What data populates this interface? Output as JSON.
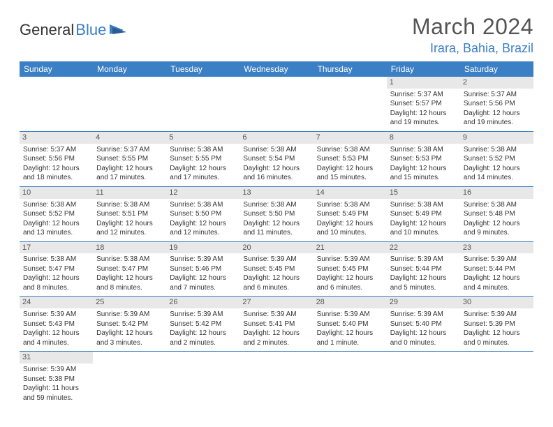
{
  "logo": {
    "text1": "General",
    "text2": "Blue"
  },
  "title": "March 2024",
  "location": "Irara, Bahia, Brazil",
  "dayHeaders": [
    "Sunday",
    "Monday",
    "Tuesday",
    "Wednesday",
    "Thursday",
    "Friday",
    "Saturday"
  ],
  "colors": {
    "header_bg": "#3b7fc4",
    "header_text": "#ffffff",
    "daynum_bg": "#e8e8e8",
    "border": "#3b7fc4",
    "location_text": "#3b7fc4",
    "title_text": "#555555"
  },
  "weeks": [
    [
      null,
      null,
      null,
      null,
      null,
      {
        "d": "1",
        "sr": "5:37 AM",
        "ss": "5:57 PM",
        "dl": "12 hours and 19 minutes."
      },
      {
        "d": "2",
        "sr": "5:37 AM",
        "ss": "5:56 PM",
        "dl": "12 hours and 19 minutes."
      }
    ],
    [
      {
        "d": "3",
        "sr": "5:37 AM",
        "ss": "5:56 PM",
        "dl": "12 hours and 18 minutes."
      },
      {
        "d": "4",
        "sr": "5:37 AM",
        "ss": "5:55 PM",
        "dl": "12 hours and 17 minutes."
      },
      {
        "d": "5",
        "sr": "5:38 AM",
        "ss": "5:55 PM",
        "dl": "12 hours and 17 minutes."
      },
      {
        "d": "6",
        "sr": "5:38 AM",
        "ss": "5:54 PM",
        "dl": "12 hours and 16 minutes."
      },
      {
        "d": "7",
        "sr": "5:38 AM",
        "ss": "5:53 PM",
        "dl": "12 hours and 15 minutes."
      },
      {
        "d": "8",
        "sr": "5:38 AM",
        "ss": "5:53 PM",
        "dl": "12 hours and 15 minutes."
      },
      {
        "d": "9",
        "sr": "5:38 AM",
        "ss": "5:52 PM",
        "dl": "12 hours and 14 minutes."
      }
    ],
    [
      {
        "d": "10",
        "sr": "5:38 AM",
        "ss": "5:52 PM",
        "dl": "12 hours and 13 minutes."
      },
      {
        "d": "11",
        "sr": "5:38 AM",
        "ss": "5:51 PM",
        "dl": "12 hours and 12 minutes."
      },
      {
        "d": "12",
        "sr": "5:38 AM",
        "ss": "5:50 PM",
        "dl": "12 hours and 12 minutes."
      },
      {
        "d": "13",
        "sr": "5:38 AM",
        "ss": "5:50 PM",
        "dl": "12 hours and 11 minutes."
      },
      {
        "d": "14",
        "sr": "5:38 AM",
        "ss": "5:49 PM",
        "dl": "12 hours and 10 minutes."
      },
      {
        "d": "15",
        "sr": "5:38 AM",
        "ss": "5:49 PM",
        "dl": "12 hours and 10 minutes."
      },
      {
        "d": "16",
        "sr": "5:38 AM",
        "ss": "5:48 PM",
        "dl": "12 hours and 9 minutes."
      }
    ],
    [
      {
        "d": "17",
        "sr": "5:38 AM",
        "ss": "5:47 PM",
        "dl": "12 hours and 8 minutes."
      },
      {
        "d": "18",
        "sr": "5:38 AM",
        "ss": "5:47 PM",
        "dl": "12 hours and 8 minutes."
      },
      {
        "d": "19",
        "sr": "5:39 AM",
        "ss": "5:46 PM",
        "dl": "12 hours and 7 minutes."
      },
      {
        "d": "20",
        "sr": "5:39 AM",
        "ss": "5:45 PM",
        "dl": "12 hours and 6 minutes."
      },
      {
        "d": "21",
        "sr": "5:39 AM",
        "ss": "5:45 PM",
        "dl": "12 hours and 6 minutes."
      },
      {
        "d": "22",
        "sr": "5:39 AM",
        "ss": "5:44 PM",
        "dl": "12 hours and 5 minutes."
      },
      {
        "d": "23",
        "sr": "5:39 AM",
        "ss": "5:44 PM",
        "dl": "12 hours and 4 minutes."
      }
    ],
    [
      {
        "d": "24",
        "sr": "5:39 AM",
        "ss": "5:43 PM",
        "dl": "12 hours and 4 minutes."
      },
      {
        "d": "25",
        "sr": "5:39 AM",
        "ss": "5:42 PM",
        "dl": "12 hours and 3 minutes."
      },
      {
        "d": "26",
        "sr": "5:39 AM",
        "ss": "5:42 PM",
        "dl": "12 hours and 2 minutes."
      },
      {
        "d": "27",
        "sr": "5:39 AM",
        "ss": "5:41 PM",
        "dl": "12 hours and 2 minutes."
      },
      {
        "d": "28",
        "sr": "5:39 AM",
        "ss": "5:40 PM",
        "dl": "12 hours and 1 minute."
      },
      {
        "d": "29",
        "sr": "5:39 AM",
        "ss": "5:40 PM",
        "dl": "12 hours and 0 minutes."
      },
      {
        "d": "30",
        "sr": "5:39 AM",
        "ss": "5:39 PM",
        "dl": "12 hours and 0 minutes."
      }
    ],
    [
      {
        "d": "31",
        "sr": "5:39 AM",
        "ss": "5:38 PM",
        "dl": "11 hours and 59 minutes."
      },
      null,
      null,
      null,
      null,
      null,
      null
    ]
  ],
  "labels": {
    "sunrise": "Sunrise:",
    "sunset": "Sunset:",
    "daylight": "Daylight:"
  }
}
